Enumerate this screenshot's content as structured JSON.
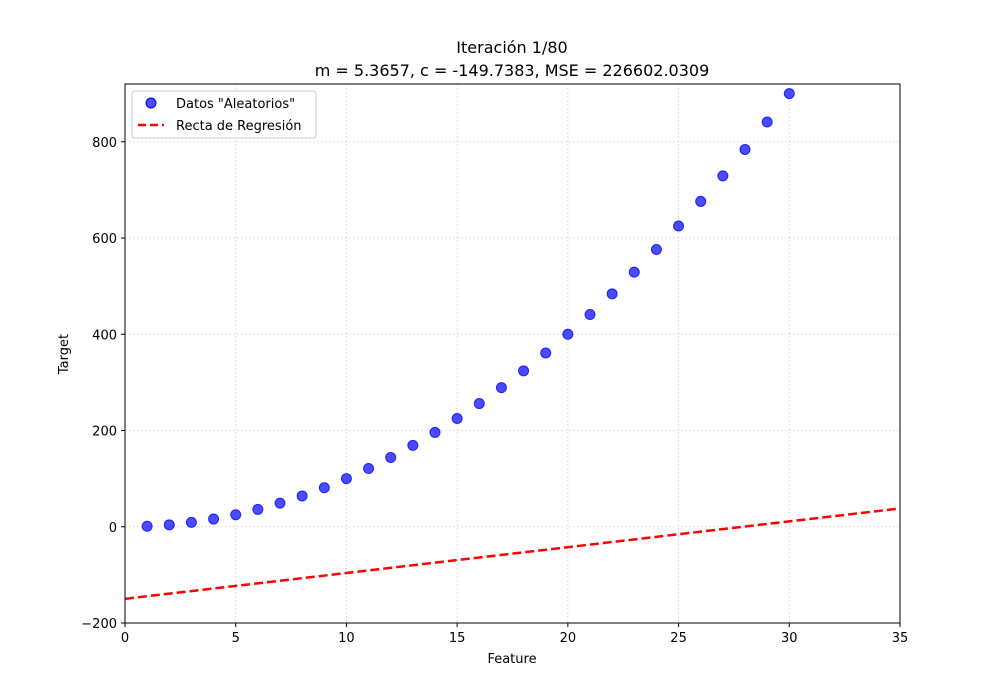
{
  "colors": {
    "scatter": "#0000ff",
    "regression": "#ff0000",
    "grid": "#cccccc",
    "axes": "#000000",
    "background": "#ffffff"
  },
  "chart_data": {
    "type": "scatter",
    "title": "Iteración 1/80",
    "subtitle": "m = 5.3657, c = -149.7383, MSE = 226602.0309",
    "xlabel": "Feature",
    "ylabel": "Target",
    "xlim": [
      0,
      35
    ],
    "ylim": [
      -200,
      920
    ],
    "xticks": [
      0,
      5,
      10,
      15,
      20,
      25,
      30,
      35
    ],
    "yticks": [
      -200,
      0,
      200,
      400,
      600,
      800
    ],
    "grid": true,
    "legend_position": "upper-left",
    "series": [
      {
        "name": "Datos \"Aleatorios\"",
        "type": "scatter",
        "x": [
          1,
          2,
          3,
          4,
          5,
          6,
          7,
          8,
          9,
          10,
          11,
          12,
          13,
          14,
          15,
          16,
          17,
          18,
          19,
          20,
          21,
          22,
          23,
          24,
          25,
          26,
          27,
          28,
          29,
          30
        ],
        "y": [
          1,
          4,
          9,
          16,
          25,
          36,
          49,
          64,
          81,
          100,
          121,
          144,
          169,
          196,
          225,
          256,
          289,
          324,
          361,
          400,
          441,
          484,
          529,
          576,
          625,
          676,
          729,
          784,
          841,
          900
        ]
      },
      {
        "name": "Recta de Regresión",
        "type": "line",
        "style": "dashed",
        "slope": 5.3657,
        "intercept": -149.7383
      }
    ]
  }
}
